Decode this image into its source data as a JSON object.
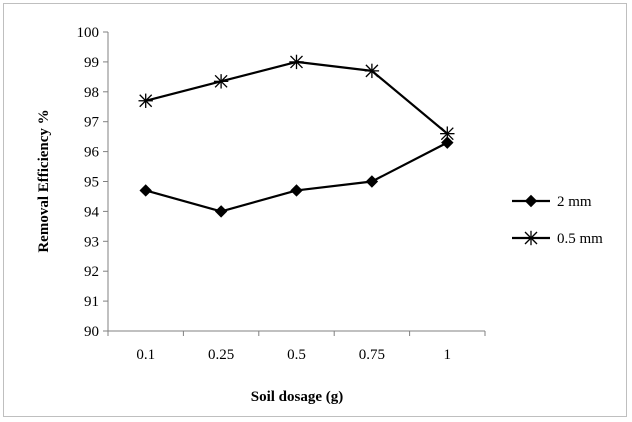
{
  "chart_data": {
    "type": "line",
    "categories": [
      "0.1",
      "0.25",
      "0.5",
      "0.75",
      "1"
    ],
    "series": [
      {
        "name": "2 mm",
        "marker": "diamond",
        "color": "#000000",
        "values": [
          94.7,
          94.0,
          94.7,
          95.0,
          96.3
        ]
      },
      {
        "name": "0.5 mm",
        "marker": "asterisk",
        "color": "#000000",
        "values": [
          97.7,
          98.35,
          99.0,
          98.7,
          96.6
        ]
      }
    ],
    "xlabel": "Soil dosage (g)",
    "ylabel": "Removal Efficiency  %",
    "ylim": [
      90,
      100
    ],
    "yticks": [
      90,
      91,
      92,
      93,
      94,
      95,
      96,
      97,
      98,
      99,
      100
    ],
    "grid": false,
    "legend_position": "right"
  }
}
